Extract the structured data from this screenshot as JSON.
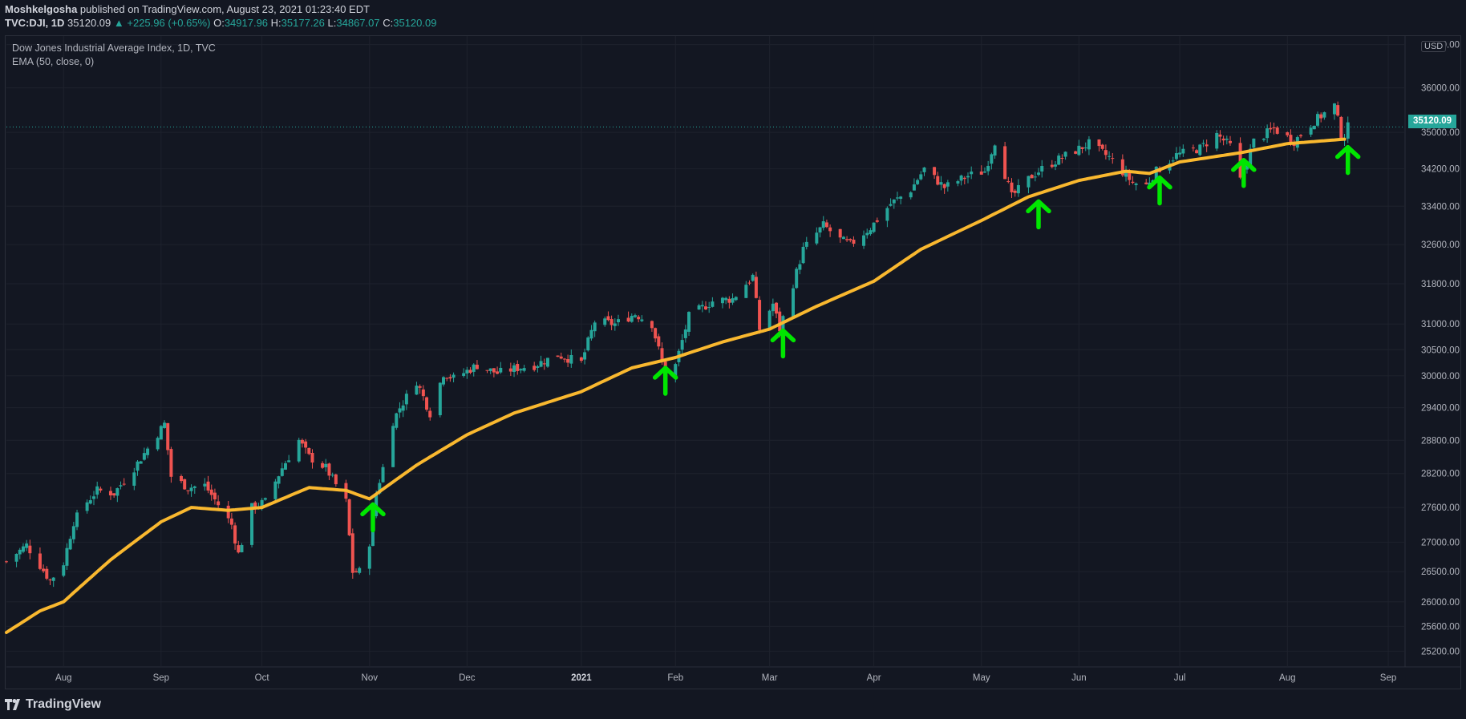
{
  "header": {
    "author": "Moshkelgosha",
    "published_text": "published on TradingView.com, August 23, 2021 01:23:40 EDT",
    "symbol": "TVC:DJI, 1D",
    "last": "35120.09",
    "change": "▲ +225.96 (+0.65%)",
    "o_label": "O:",
    "o_value": "34917.96",
    "h_label": "H:",
    "h_value": "35177.26",
    "l_label": "L:",
    "l_value": "34867.07",
    "c_label": "C:",
    "c_value": "35120.09"
  },
  "legend": {
    "title": "Dow Jones Industrial Average Index, 1D, TVC",
    "indicator": "EMA (50, close, 0)"
  },
  "currency": "USD",
  "last_price_tag": "35120.09",
  "footer": {
    "brand": "TradingView"
  },
  "colors": {
    "background": "#131722",
    "up": "#26a69a",
    "down": "#ef5350",
    "ema": "#f9b82f",
    "arrow": "#00e600",
    "grid": "#1e222d"
  },
  "chart_data": {
    "type": "candlestick",
    "title": "Dow Jones Industrial Average Index, 1D, TVC",
    "y_scale": "log",
    "y_ticks": [
      25200,
      25600,
      26000,
      26500,
      27000,
      27600,
      28200,
      28800,
      29400,
      30000,
      30500,
      31000,
      31800,
      32600,
      33400,
      34200,
      35000,
      36000,
      37000
    ],
    "y_tick_labels": [
      "25200.00",
      "25600.00",
      "26000.00",
      "26500.00",
      "27000.00",
      "27600.00",
      "28200.00",
      "28800.00",
      "29400.00",
      "30000.00",
      "30500.00",
      "31000.00",
      "31800.00",
      "32600.00",
      "33400.00",
      "34200.00",
      "35000.00",
      "36000.00",
      "37000.00"
    ],
    "x_ticks": [
      {
        "label": "Aug",
        "date": "2020-08-03"
      },
      {
        "label": "Sep",
        "date": "2020-09-01"
      },
      {
        "label": "Oct",
        "date": "2020-10-01"
      },
      {
        "label": "Nov",
        "date": "2020-11-02"
      },
      {
        "label": "Dec",
        "date": "2020-12-01"
      },
      {
        "label": "2021",
        "date": "2021-01-04"
      },
      {
        "label": "Feb",
        "date": "2021-02-01"
      },
      {
        "label": "Mar",
        "date": "2021-03-01"
      },
      {
        "label": "Apr",
        "date": "2021-04-01"
      },
      {
        "label": "May",
        "date": "2021-05-03"
      },
      {
        "label": "Jun",
        "date": "2021-06-01"
      },
      {
        "label": "Jul",
        "date": "2021-07-01"
      },
      {
        "label": "Aug",
        "date": "2021-08-02"
      },
      {
        "label": "Sep",
        "date": "2021-09-01"
      }
    ],
    "x_range": [
      "2020-07-17",
      "2021-09-06"
    ],
    "y_range": [
      24950,
      37200
    ],
    "ohlc_keypoints": [
      [
        "2020-07-17",
        26670
      ],
      [
        "2020-07-23",
        26950
      ],
      [
        "2020-07-30",
        26350
      ],
      [
        "2020-08-03",
        26650
      ],
      [
        "2020-08-06",
        27350
      ],
      [
        "2020-08-10",
        27700
      ],
      [
        "2020-08-13",
        27900
      ],
      [
        "2020-08-18",
        27850
      ],
      [
        "2020-08-24",
        28300
      ],
      [
        "2020-08-28",
        28650
      ],
      [
        "2020-09-02",
        29100
      ],
      [
        "2020-09-04",
        28150
      ],
      [
        "2020-09-09",
        27950
      ],
      [
        "2020-09-14",
        27990
      ],
      [
        "2020-09-18",
        27650
      ],
      [
        "2020-09-22",
        27300
      ],
      [
        "2020-09-24",
        26800
      ],
      [
        "2020-09-28",
        27600
      ],
      [
        "2020-10-02",
        27700
      ],
      [
        "2020-10-07",
        28300
      ],
      [
        "2020-10-12",
        28800
      ],
      [
        "2020-10-15",
        28500
      ],
      [
        "2020-10-20",
        28300
      ],
      [
        "2020-10-26",
        27700
      ],
      [
        "2020-10-28",
        26500
      ],
      [
        "2020-10-30",
        26500
      ],
      [
        "2020-11-02",
        27000
      ],
      [
        "2020-11-04",
        27850
      ],
      [
        "2020-11-06",
        28300
      ],
      [
        "2020-11-09",
        29150
      ],
      [
        "2020-11-11",
        29400
      ],
      [
        "2020-11-16",
        29900
      ],
      [
        "2020-11-20",
        29300
      ],
      [
        "2020-11-24",
        30050
      ],
      [
        "2020-11-27",
        29950
      ],
      [
        "2020-12-04",
        30200
      ],
      [
        "2020-12-10",
        30050
      ],
      [
        "2020-12-16",
        30150
      ],
      [
        "2020-12-21",
        30200
      ],
      [
        "2020-12-28",
        30400
      ],
      [
        "2021-01-04",
        30250
      ],
      [
        "2021-01-08",
        31050
      ],
      [
        "2021-01-14",
        31000
      ],
      [
        "2021-01-20",
        31200
      ],
      [
        "2021-01-25",
        31000
      ],
      [
        "2021-01-29",
        30000
      ],
      [
        "2021-02-01",
        30200
      ],
      [
        "2021-02-05",
        31150
      ],
      [
        "2021-02-12",
        31450
      ],
      [
        "2021-02-18",
        31500
      ],
      [
        "2021-02-24",
        31950
      ],
      [
        "2021-02-26",
        30900
      ],
      [
        "2021-03-02",
        31400
      ],
      [
        "2021-03-04",
        30900
      ],
      [
        "2021-03-08",
        31800
      ],
      [
        "2021-03-11",
        32500
      ],
      [
        "2021-03-17",
        33000
      ],
      [
        "2021-03-22",
        32700
      ],
      [
        "2021-03-25",
        32600
      ],
      [
        "2021-03-31",
        32950
      ],
      [
        "2021-04-06",
        33450
      ],
      [
        "2021-04-12",
        33750
      ],
      [
        "2021-04-16",
        34200
      ],
      [
        "2021-04-22",
        33800
      ],
      [
        "2021-04-29",
        34050
      ],
      [
        "2021-05-04",
        34150
      ],
      [
        "2021-05-07",
        34800
      ],
      [
        "2021-05-12",
        33600
      ],
      [
        "2021-05-18",
        34050
      ],
      [
        "2021-05-21",
        34200
      ],
      [
        "2021-05-27",
        34450
      ],
      [
        "2021-06-04",
        34750
      ],
      [
        "2021-06-10",
        34450
      ],
      [
        "2021-06-17",
        33900
      ],
      [
        "2021-06-21",
        33850
      ],
      [
        "2021-06-24",
        34150
      ],
      [
        "2021-06-30",
        34500
      ],
      [
        "2021-07-07",
        34650
      ],
      [
        "2021-07-12",
        34950
      ],
      [
        "2021-07-16",
        34700
      ],
      [
        "2021-07-19",
        33950
      ],
      [
        "2021-07-23",
        34800
      ],
      [
        "2021-07-29",
        35080
      ],
      [
        "2021-08-04",
        34800
      ],
      [
        "2021-08-10",
        35250
      ],
      [
        "2021-08-16",
        35600
      ],
      [
        "2021-08-18",
        34950
      ],
      [
        "2021-08-19",
        34900
      ],
      [
        "2021-08-20",
        35120
      ]
    ],
    "ema50_keypoints": [
      [
        "2020-07-17",
        25500
      ],
      [
        "2020-07-27",
        25850
      ],
      [
        "2020-08-03",
        26000
      ],
      [
        "2020-08-17",
        26700
      ],
      [
        "2020-09-01",
        27350
      ],
      [
        "2020-09-10",
        27600
      ],
      [
        "2020-09-21",
        27550
      ],
      [
        "2020-10-01",
        27600
      ],
      [
        "2020-10-15",
        27950
      ],
      [
        "2020-10-26",
        27900
      ],
      [
        "2020-11-02",
        27750
      ],
      [
        "2020-11-16",
        28350
      ],
      [
        "2020-12-01",
        28900
      ],
      [
        "2020-12-15",
        29300
      ],
      [
        "2021-01-04",
        29700
      ],
      [
        "2021-01-19",
        30150
      ],
      [
        "2021-02-01",
        30350
      ],
      [
        "2021-02-15",
        30650
      ],
      [
        "2021-03-01",
        30900
      ],
      [
        "2021-03-15",
        31350
      ],
      [
        "2021-04-01",
        31850
      ],
      [
        "2021-04-15",
        32500
      ],
      [
        "2021-05-03",
        33100
      ],
      [
        "2021-05-17",
        33600
      ],
      [
        "2021-06-01",
        33950
      ],
      [
        "2021-06-15",
        34150
      ],
      [
        "2021-06-22",
        34100
      ],
      [
        "2021-07-01",
        34350
      ],
      [
        "2021-07-19",
        34550
      ],
      [
        "2021-08-02",
        34750
      ],
      [
        "2021-08-19",
        34850
      ]
    ],
    "arrow_markers": [
      "2020-11-03",
      "2021-01-29",
      "2021-03-05",
      "2021-05-20",
      "2021-06-25",
      "2021-07-20",
      "2021-08-20"
    ],
    "last_price": 35120.09
  }
}
